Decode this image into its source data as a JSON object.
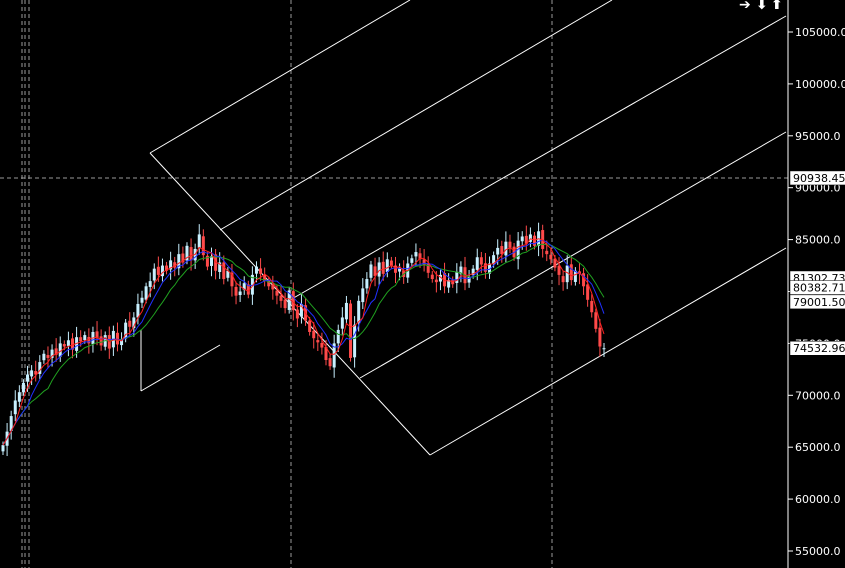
{
  "chart_data": {
    "type": "candlestick",
    "title": "",
    "xlabel": "",
    "ylabel": "",
    "ylim": [
      53500,
      108000
    ],
    "grid": false,
    "y_ticks": [
      {
        "value": 105000,
        "label": "105000.0"
      },
      {
        "value": 100000,
        "label": "100000.0"
      },
      {
        "value": 95000,
        "label": "95000.0"
      },
      {
        "value": 90000,
        "label": "90000.0"
      },
      {
        "value": 85000,
        "label": "85000.0"
      },
      {
        "value": 80000,
        "label": "80000.0"
      },
      {
        "value": 75000,
        "label": "75000.0"
      },
      {
        "value": 70000,
        "label": "70000.0"
      },
      {
        "value": 65000,
        "label": "65000.0"
      },
      {
        "value": 60000,
        "label": "60000.0"
      },
      {
        "value": 55000,
        "label": "55000.0"
      }
    ],
    "price_labels": [
      {
        "value": 90938.45,
        "label": "90938.45",
        "color": "#ffffff"
      },
      {
        "value": 81302.73,
        "label": "81302.73",
        "color": "#ffffff"
      },
      {
        "value": 80382.71,
        "label": "80382.71",
        "color": "#ffffff"
      },
      {
        "value": 79001.5,
        "label": "79001.50",
        "color": "#ffffff"
      },
      {
        "value": 74532.96,
        "label": "74532.96",
        "color": "#ffffff"
      }
    ],
    "crosshair_value": 90938.45,
    "candle_colors": {
      "up": "#c8f0ff",
      "down": "#ff4a4a"
    },
    "ma_colors": {
      "fast": "#ff2020",
      "mid": "#2030ff",
      "slow": "#20a020"
    },
    "closes": [
      65200,
      66500,
      68000,
      69500,
      70300,
      71200,
      72000,
      72400,
      72000,
      73200,
      74000,
      73600,
      74400,
      73900,
      75000,
      74700,
      75300,
      74400,
      75600,
      75200,
      75800,
      75000,
      76100,
      75500,
      74800,
      75800,
      74500,
      76200,
      74900,
      75400,
      77000,
      76600,
      77500,
      78800,
      79400,
      80500,
      81000,
      82200,
      81600,
      82500,
      82000,
      83000,
      82300,
      83600,
      82800,
      84400,
      83000,
      84100,
      85500,
      83500,
      82400,
      83400,
      82000,
      82800,
      81200,
      82000,
      80500,
      79600,
      80000,
      80800,
      79700,
      81600,
      82400,
      81700,
      81000,
      80500,
      80200,
      79600,
      79100,
      78400,
      80100,
      78200,
      77400,
      78800,
      77200,
      76100,
      75500,
      75100,
      74600,
      73400,
      72800,
      75000,
      76300,
      77500,
      78900,
      73600,
      76800,
      79100,
      80300,
      81200,
      82600,
      81500,
      82800,
      81700,
      83100,
      82500,
      81800,
      82200,
      81400,
      82700,
      83200,
      83800,
      83100,
      82600,
      81800,
      81200,
      80900,
      81600,
      80500,
      81100,
      80700,
      81900,
      82400,
      80800,
      81400,
      82200,
      83300,
      82600,
      81900,
      82700,
      83500,
      84200,
      83600,
      84800,
      84200,
      83300,
      84900,
      85300,
      84600,
      85500,
      84400,
      85800,
      84100,
      83600,
      83100,
      82300,
      81600,
      80900,
      82500,
      81100,
      82000,
      81700,
      80500,
      79200,
      78000,
      76400,
      74700,
      74533
    ]
  },
  "toolbar": {
    "icons": [
      "arrow-right-icon",
      "arrow-down-icon",
      "arrow-up-icon"
    ]
  }
}
